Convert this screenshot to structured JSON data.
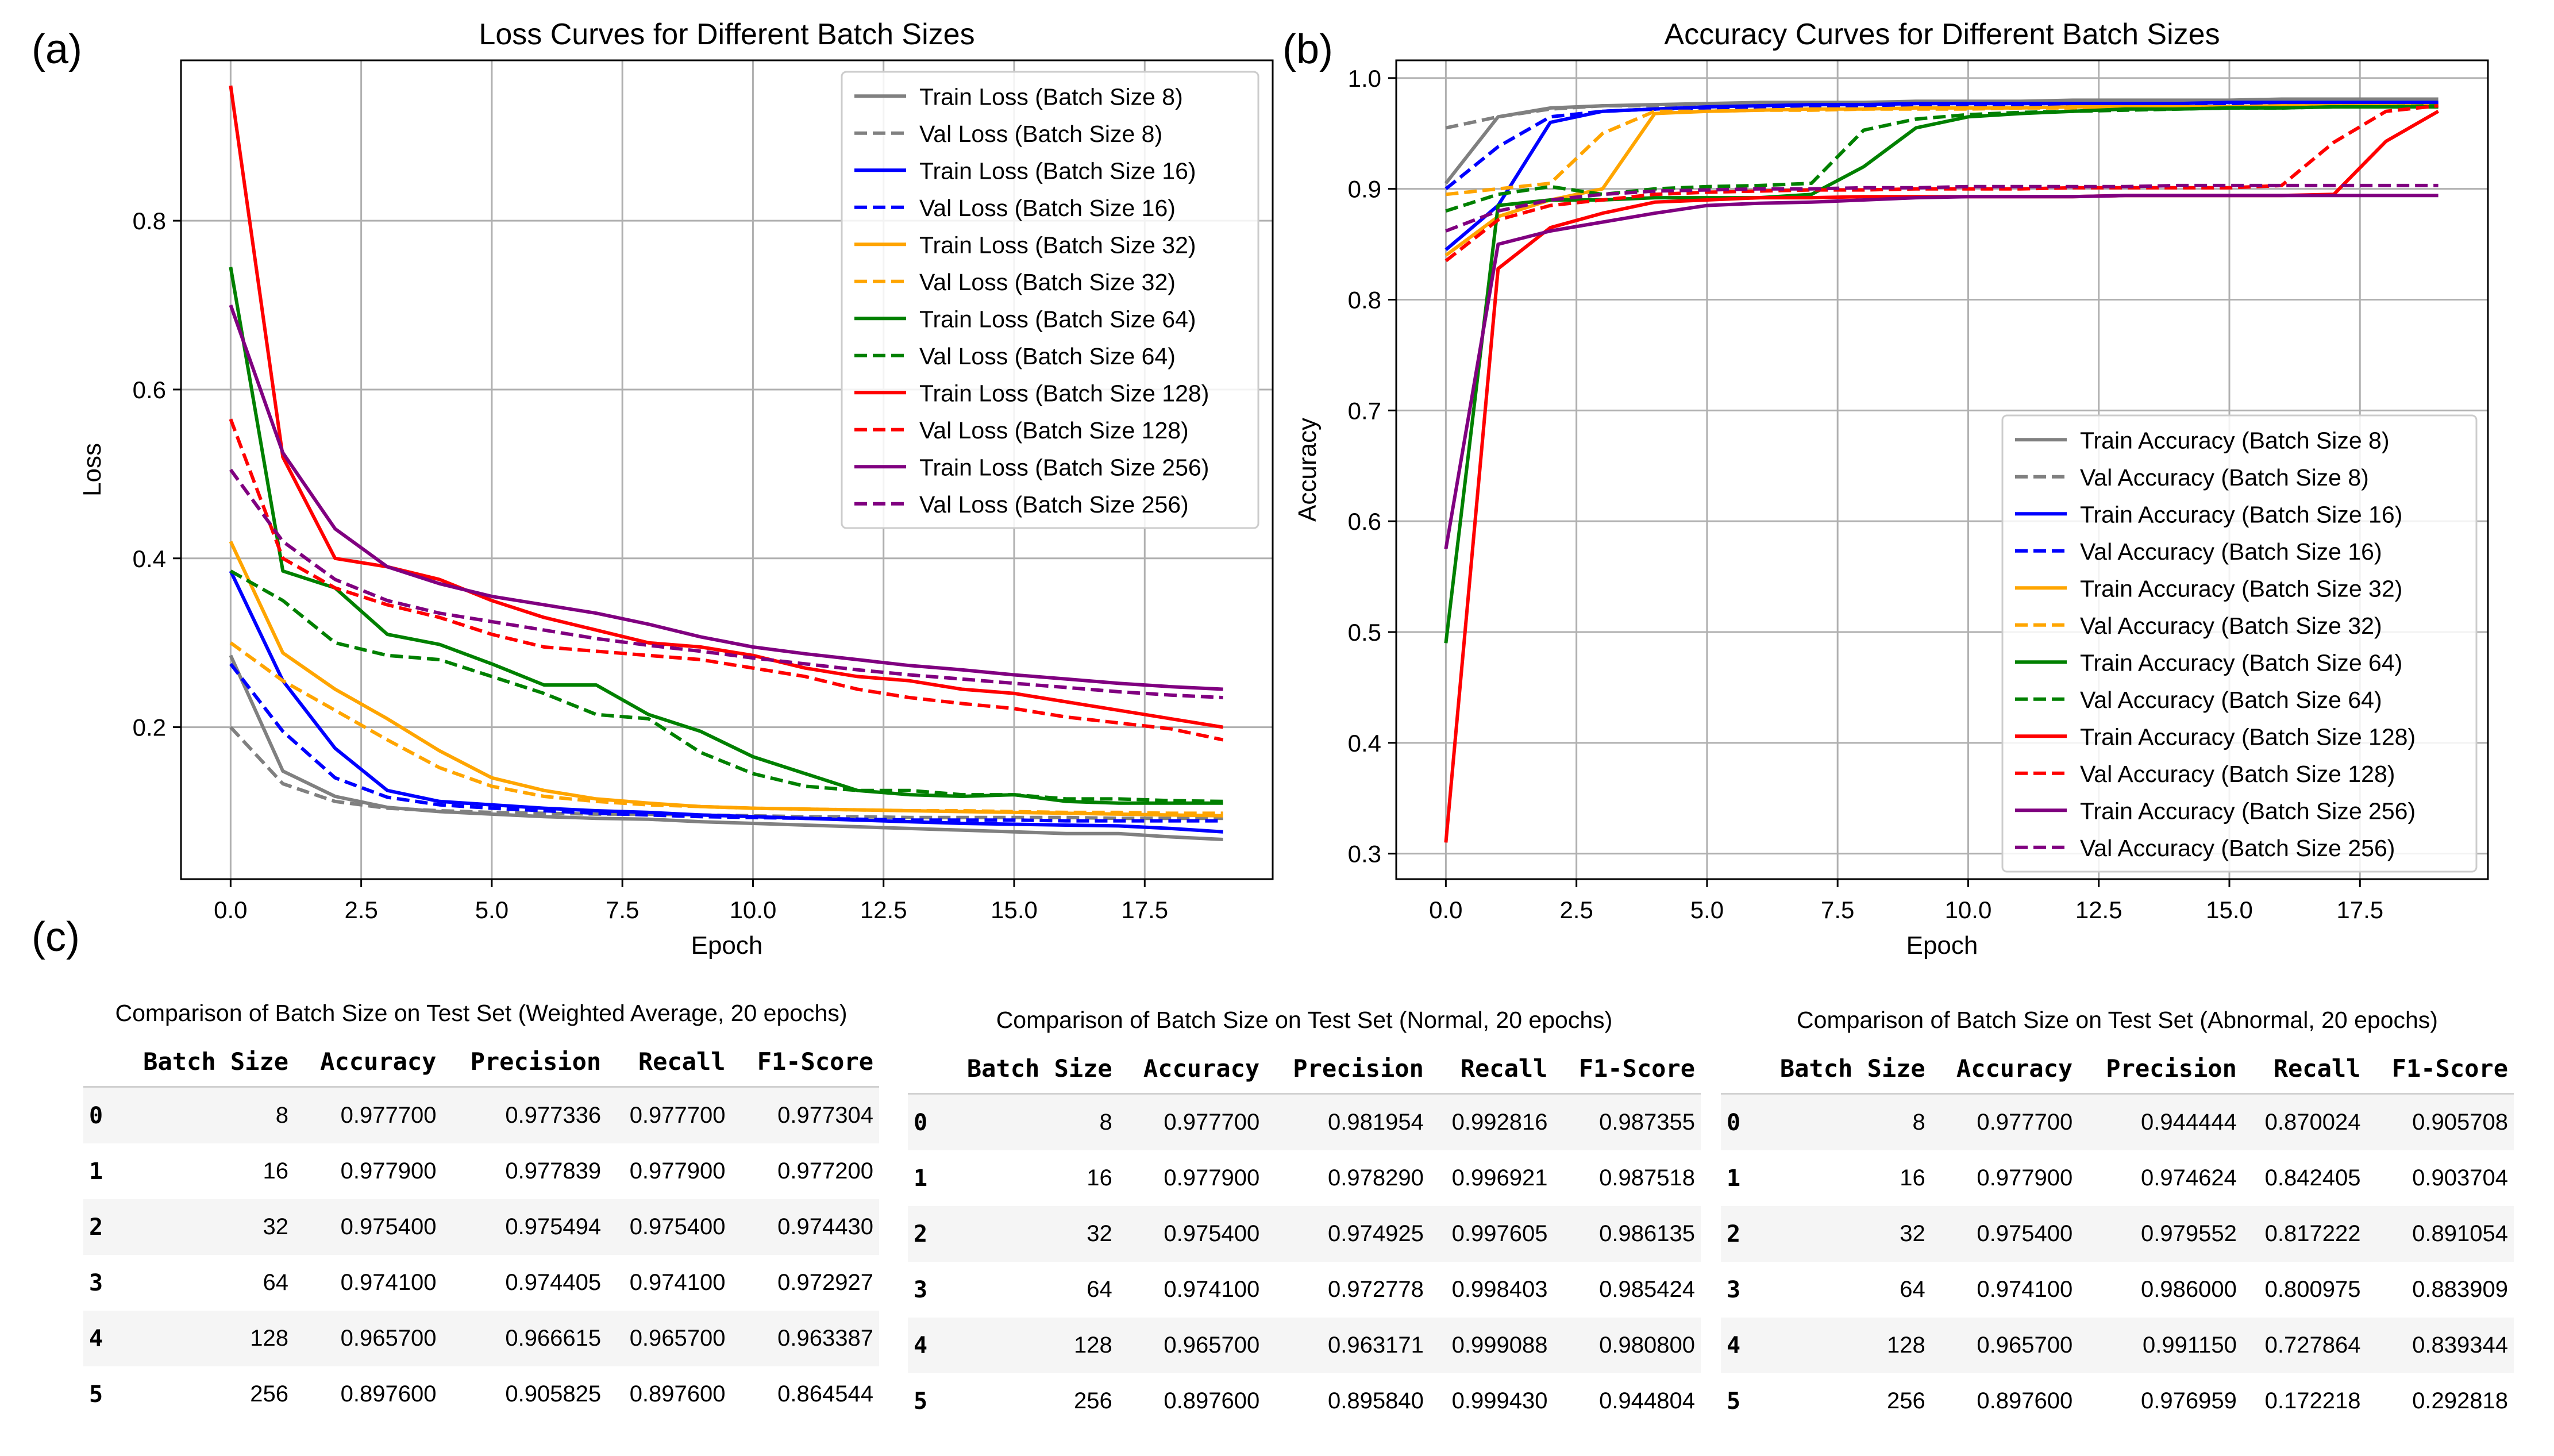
{
  "panel_labels": {
    "a": "(a)",
    "b": "(b)",
    "c": "(c)"
  },
  "chart_data": [
    {
      "type": "line",
      "title": "Loss Curves for Different Batch Sizes",
      "xlabel": "Epoch",
      "ylabel": "Loss",
      "xlim": [
        -0.95,
        19.95
      ],
      "ylim": [
        0.02,
        0.99
      ],
      "xticks": [
        0.0,
        2.5,
        5.0,
        7.5,
        10.0,
        12.5,
        15.0,
        17.5
      ],
      "xtick_labels": [
        "0.0",
        "2.5",
        "5.0",
        "7.5",
        "10.0",
        "12.5",
        "15.0",
        "17.5"
      ],
      "yticks": [
        0.2,
        0.4,
        0.6,
        0.8
      ],
      "ytick_labels": [
        "0.2",
        "0.4",
        "0.6",
        "0.8"
      ],
      "grid": true,
      "legend_position": "top-right",
      "x": [
        0,
        1,
        2,
        3,
        4,
        5,
        6,
        7,
        8,
        9,
        10,
        11,
        12,
        13,
        14,
        15,
        16,
        17,
        18,
        19
      ],
      "series": [
        {
          "name": "Train Loss (Batch Size 8)",
          "color": "#808080",
          "dash": false,
          "values": [
            0.285,
            0.148,
            0.118,
            0.105,
            0.1,
            0.097,
            0.094,
            0.092,
            0.091,
            0.088,
            0.086,
            0.084,
            0.082,
            0.08,
            0.078,
            0.076,
            0.074,
            0.074,
            0.07,
            0.067
          ]
        },
        {
          "name": "Val Loss (Batch Size 8)",
          "color": "#808080",
          "dash": true,
          "values": [
            0.2,
            0.133,
            0.112,
            0.104,
            0.101,
            0.099,
            0.098,
            0.097,
            0.097,
            0.096,
            0.095,
            0.094,
            0.094,
            0.093,
            0.093,
            0.093,
            0.093,
            0.092,
            0.092,
            0.092
          ]
        },
        {
          "name": "Train Loss (Batch Size 16)",
          "color": "#0000ff",
          "dash": false,
          "values": [
            0.385,
            0.255,
            0.175,
            0.125,
            0.112,
            0.108,
            0.104,
            0.101,
            0.099,
            0.096,
            0.094,
            0.092,
            0.09,
            0.088,
            0.086,
            0.085,
            0.084,
            0.083,
            0.08,
            0.076
          ]
        },
        {
          "name": "Val Loss (Batch Size 16)",
          "color": "#0000ff",
          "dash": true,
          "values": [
            0.275,
            0.195,
            0.14,
            0.117,
            0.108,
            0.104,
            0.101,
            0.098,
            0.096,
            0.094,
            0.093,
            0.092,
            0.091,
            0.09,
            0.09,
            0.09,
            0.089,
            0.089,
            0.089,
            0.089
          ]
        },
        {
          "name": "Train Loss (Batch Size 32)",
          "color": "#ffa500",
          "dash": false,
          "values": [
            0.42,
            0.288,
            0.245,
            0.21,
            0.172,
            0.14,
            0.125,
            0.115,
            0.11,
            0.106,
            0.104,
            0.103,
            0.102,
            0.101,
            0.1,
            0.099,
            0.098,
            0.097,
            0.096,
            0.095
          ]
        },
        {
          "name": "Val Loss (Batch Size 32)",
          "color": "#ffa500",
          "dash": true,
          "values": [
            0.3,
            0.255,
            0.22,
            0.185,
            0.152,
            0.13,
            0.118,
            0.112,
            0.108,
            0.106,
            0.104,
            0.103,
            0.102,
            0.101,
            0.101,
            0.1,
            0.099,
            0.099,
            0.098,
            0.098
          ]
        },
        {
          "name": "Train Loss (Batch Size 64)",
          "color": "#008000",
          "dash": false,
          "values": [
            0.745,
            0.385,
            0.365,
            0.31,
            0.298,
            0.275,
            0.25,
            0.25,
            0.215,
            0.195,
            0.165,
            0.145,
            0.125,
            0.12,
            0.118,
            0.12,
            0.112,
            0.11,
            0.11,
            0.11
          ]
        },
        {
          "name": "Val Loss (Batch Size 64)",
          "color": "#008000",
          "dash": true,
          "values": [
            0.385,
            0.35,
            0.3,
            0.285,
            0.28,
            0.26,
            0.24,
            0.215,
            0.21,
            0.17,
            0.145,
            0.13,
            0.125,
            0.125,
            0.12,
            0.12,
            0.115,
            0.115,
            0.113,
            0.112
          ]
        },
        {
          "name": "Train Loss (Batch Size 128)",
          "color": "#ff0000",
          "dash": false,
          "values": [
            0.96,
            0.52,
            0.4,
            0.39,
            0.375,
            0.35,
            0.33,
            0.315,
            0.3,
            0.295,
            0.285,
            0.27,
            0.26,
            0.255,
            0.245,
            0.24,
            0.23,
            0.22,
            0.21,
            0.2
          ]
        },
        {
          "name": "Val Loss (Batch Size 128)",
          "color": "#ff0000",
          "dash": true,
          "values": [
            0.565,
            0.4,
            0.365,
            0.345,
            0.33,
            0.31,
            0.295,
            0.29,
            0.285,
            0.28,
            0.27,
            0.26,
            0.245,
            0.235,
            0.228,
            0.222,
            0.212,
            0.205,
            0.198,
            0.185
          ]
        },
        {
          "name": "Train Loss (Batch Size 256)",
          "color": "#800080",
          "dash": false,
          "values": [
            0.7,
            0.525,
            0.435,
            0.39,
            0.37,
            0.355,
            0.345,
            0.335,
            0.322,
            0.307,
            0.295,
            0.287,
            0.28,
            0.273,
            0.268,
            0.262,
            0.257,
            0.252,
            0.248,
            0.245
          ]
        },
        {
          "name": "Val Loss (Batch Size 256)",
          "color": "#800080",
          "dash": true,
          "values": [
            0.505,
            0.42,
            0.375,
            0.35,
            0.335,
            0.325,
            0.315,
            0.305,
            0.297,
            0.29,
            0.282,
            0.275,
            0.268,
            0.262,
            0.257,
            0.252,
            0.247,
            0.242,
            0.238,
            0.235
          ]
        }
      ]
    },
    {
      "type": "line",
      "title": "Accuracy Curves for Different Batch Sizes",
      "xlabel": "Epoch",
      "ylabel": "Accuracy",
      "xlim": [
        -0.95,
        19.95
      ],
      "ylim": [
        0.277,
        1.016
      ],
      "xticks": [
        0.0,
        2.5,
        5.0,
        7.5,
        10.0,
        12.5,
        15.0,
        17.5
      ],
      "xtick_labels": [
        "0.0",
        "2.5",
        "5.0",
        "7.5",
        "10.0",
        "12.5",
        "15.0",
        "17.5"
      ],
      "yticks": [
        0.3,
        0.4,
        0.5,
        0.6,
        0.7,
        0.8,
        0.9,
        1.0
      ],
      "ytick_labels": [
        "0.3",
        "0.4",
        "0.5",
        "0.6",
        "0.7",
        "0.8",
        "0.9",
        "1.0"
      ],
      "grid": true,
      "legend_position": "lower-right",
      "x": [
        0,
        1,
        2,
        3,
        4,
        5,
        6,
        7,
        8,
        9,
        10,
        11,
        12,
        13,
        14,
        15,
        16,
        17,
        18,
        19
      ],
      "series": [
        {
          "name": "Train Accuracy (Batch Size 8)",
          "color": "#808080",
          "dash": false,
          "values": [
            0.905,
            0.965,
            0.973,
            0.975,
            0.976,
            0.977,
            0.978,
            0.978,
            0.978,
            0.979,
            0.979,
            0.979,
            0.98,
            0.98,
            0.98,
            0.98,
            0.981,
            0.981,
            0.981,
            0.981
          ]
        },
        {
          "name": "Val Accuracy (Batch Size 8)",
          "color": "#808080",
          "dash": true,
          "values": [
            0.955,
            0.965,
            0.972,
            0.975,
            0.975,
            0.976,
            0.976,
            0.976,
            0.977,
            0.977,
            0.977,
            0.977,
            0.977,
            0.977,
            0.977,
            0.978,
            0.978,
            0.978,
            0.978,
            0.978
          ]
        },
        {
          "name": "Train Accuracy (Batch Size 16)",
          "color": "#0000ff",
          "dash": false,
          "values": [
            0.845,
            0.885,
            0.96,
            0.97,
            0.972,
            0.974,
            0.975,
            0.976,
            0.976,
            0.977,
            0.977,
            0.977,
            0.977,
            0.977,
            0.977,
            0.978,
            0.978,
            0.978,
            0.978,
            0.978
          ]
        },
        {
          "name": "Val Accuracy (Batch Size 16)",
          "color": "#0000ff",
          "dash": true,
          "values": [
            0.9,
            0.938,
            0.965,
            0.97,
            0.972,
            0.973,
            0.974,
            0.975,
            0.975,
            0.975,
            0.976,
            0.976,
            0.976,
            0.976,
            0.976,
            0.977,
            0.977,
            0.977,
            0.977,
            0.977
          ]
        },
        {
          "name": "Train Accuracy (Batch Size 32)",
          "color": "#ffa500",
          "dash": false,
          "values": [
            0.84,
            0.875,
            0.89,
            0.9,
            0.968,
            0.97,
            0.971,
            0.972,
            0.972,
            0.973,
            0.973,
            0.973,
            0.974,
            0.974,
            0.974,
            0.974,
            0.975,
            0.975,
            0.975,
            0.975
          ]
        },
        {
          "name": "Val Accuracy (Batch Size 32)",
          "color": "#ffa500",
          "dash": true,
          "values": [
            0.895,
            0.9,
            0.905,
            0.95,
            0.97,
            0.97,
            0.971,
            0.971,
            0.972,
            0.972,
            0.972,
            0.973,
            0.973,
            0.973,
            0.974,
            0.974,
            0.974,
            0.974,
            0.974,
            0.975
          ]
        },
        {
          "name": "Train Accuracy (Batch Size 64)",
          "color": "#008000",
          "dash": false,
          "values": [
            0.49,
            0.885,
            0.89,
            0.89,
            0.892,
            0.892,
            0.892,
            0.895,
            0.92,
            0.955,
            0.965,
            0.968,
            0.97,
            0.972,
            0.972,
            0.973,
            0.973,
            0.974,
            0.974,
            0.974
          ]
        },
        {
          "name": "Val Accuracy (Batch Size 64)",
          "color": "#008000",
          "dash": true,
          "values": [
            0.88,
            0.895,
            0.902,
            0.895,
            0.9,
            0.902,
            0.903,
            0.905,
            0.953,
            0.963,
            0.967,
            0.969,
            0.97,
            0.971,
            0.972,
            0.973,
            0.973,
            0.974,
            0.974,
            0.975
          ]
        },
        {
          "name": "Train Accuracy (Batch Size 128)",
          "color": "#ff0000",
          "dash": false,
          "values": [
            0.31,
            0.828,
            0.865,
            0.878,
            0.888,
            0.89,
            0.892,
            0.892,
            0.893,
            0.893,
            0.893,
            0.893,
            0.893,
            0.894,
            0.894,
            0.894,
            0.894,
            0.895,
            0.943,
            0.97
          ]
        },
        {
          "name": "Val Accuracy (Batch Size 128)",
          "color": "#ff0000",
          "dash": true,
          "values": [
            0.835,
            0.872,
            0.885,
            0.89,
            0.895,
            0.897,
            0.898,
            0.899,
            0.899,
            0.9,
            0.9,
            0.9,
            0.901,
            0.901,
            0.901,
            0.901,
            0.903,
            0.942,
            0.97,
            0.975
          ]
        },
        {
          "name": "Train Accuracy (Batch Size 256)",
          "color": "#800080",
          "dash": false,
          "values": [
            0.575,
            0.85,
            0.862,
            0.87,
            0.878,
            0.885,
            0.887,
            0.888,
            0.89,
            0.892,
            0.893,
            0.893,
            0.893,
            0.894,
            0.894,
            0.894,
            0.894,
            0.894,
            0.894,
            0.894
          ]
        },
        {
          "name": "Val Accuracy (Batch Size 256)",
          "color": "#800080",
          "dash": true,
          "values": [
            0.862,
            0.88,
            0.89,
            0.895,
            0.898,
            0.899,
            0.9,
            0.9,
            0.901,
            0.901,
            0.902,
            0.902,
            0.902,
            0.902,
            0.903,
            0.903,
            0.903,
            0.903,
            0.903,
            0.903
          ]
        }
      ]
    },
    {
      "type": "table",
      "title": "Comparison of Batch Size on Test Set (Weighted Average, 20 epochs)",
      "columns": [
        "Batch Size",
        "Accuracy",
        "Precision",
        "Recall",
        "F1-Score"
      ],
      "index": [
        "0",
        "1",
        "2",
        "3",
        "4",
        "5"
      ],
      "rows": [
        [
          "8",
          "0.977700",
          "0.977336",
          "0.977700",
          "0.977304"
        ],
        [
          "16",
          "0.977900",
          "0.977839",
          "0.977900",
          "0.977200"
        ],
        [
          "32",
          "0.975400",
          "0.975494",
          "0.975400",
          "0.974430"
        ],
        [
          "64",
          "0.974100",
          "0.974405",
          "0.974100",
          "0.972927"
        ],
        [
          "128",
          "0.965700",
          "0.966615",
          "0.965700",
          "0.963387"
        ],
        [
          "256",
          "0.897600",
          "0.905825",
          "0.897600",
          "0.864544"
        ]
      ]
    },
    {
      "type": "table",
      "title": "Comparison of Batch Size on Test Set (Normal, 20 epochs)",
      "columns": [
        "Batch Size",
        "Accuracy",
        "Precision",
        "Recall",
        "F1-Score"
      ],
      "index": [
        "0",
        "1",
        "2",
        "3",
        "4",
        "5"
      ],
      "rows": [
        [
          "8",
          "0.977700",
          "0.981954",
          "0.992816",
          "0.987355"
        ],
        [
          "16",
          "0.977900",
          "0.978290",
          "0.996921",
          "0.987518"
        ],
        [
          "32",
          "0.975400",
          "0.974925",
          "0.997605",
          "0.986135"
        ],
        [
          "64",
          "0.974100",
          "0.972778",
          "0.998403",
          "0.985424"
        ],
        [
          "128",
          "0.965700",
          "0.963171",
          "0.999088",
          "0.980800"
        ],
        [
          "256",
          "0.897600",
          "0.895840",
          "0.999430",
          "0.944804"
        ]
      ]
    },
    {
      "type": "table",
      "title": "Comparison of Batch Size on Test Set (Abnormal, 20 epochs)",
      "columns": [
        "Batch Size",
        "Accuracy",
        "Precision",
        "Recall",
        "F1-Score"
      ],
      "index": [
        "0",
        "1",
        "2",
        "3",
        "4",
        "5"
      ],
      "rows": [
        [
          "8",
          "0.977700",
          "0.944444",
          "0.870024",
          "0.905708"
        ],
        [
          "16",
          "0.977900",
          "0.974624",
          "0.842405",
          "0.903704"
        ],
        [
          "32",
          "0.975400",
          "0.979552",
          "0.817222",
          "0.891054"
        ],
        [
          "64",
          "0.974100",
          "0.986000",
          "0.800975",
          "0.883909"
        ],
        [
          "128",
          "0.965700",
          "0.991150",
          "0.727864",
          "0.839344"
        ],
        [
          "256",
          "0.897600",
          "0.976959",
          "0.172218",
          "0.292818"
        ]
      ]
    }
  ]
}
